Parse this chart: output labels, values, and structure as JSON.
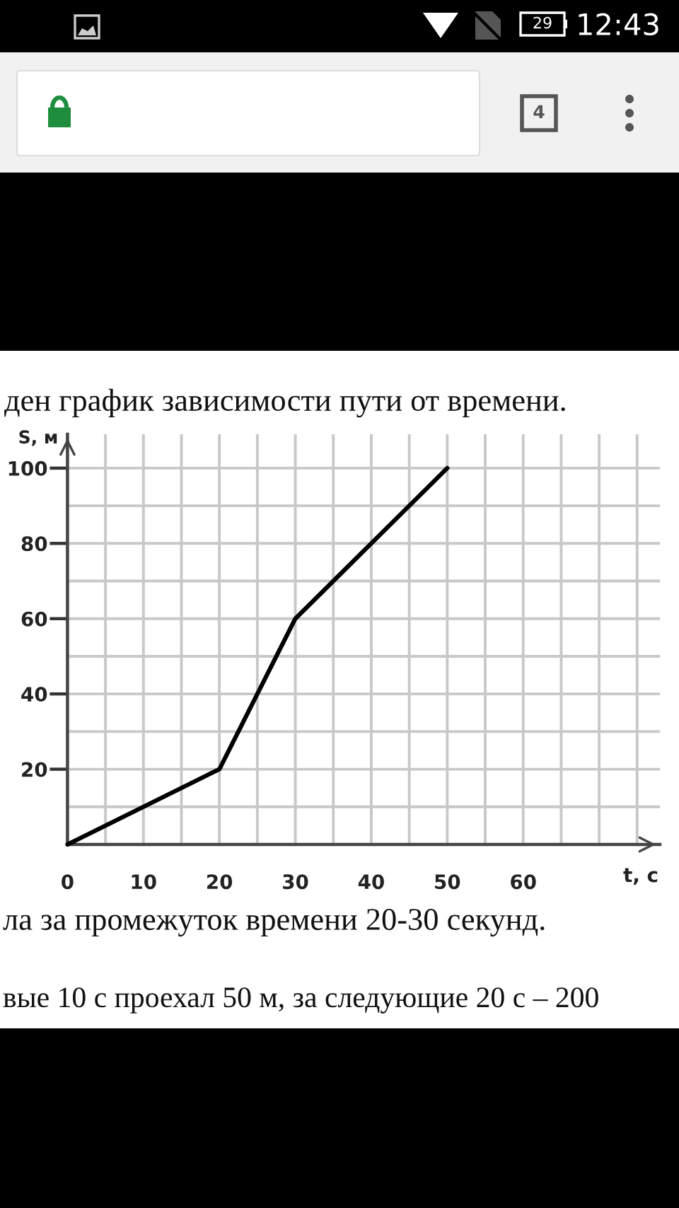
{
  "chart_data": {
    "type": "line",
    "title": "ден график зависимости пути от времени.",
    "xlabel": "t, c",
    "ylabel": "S, м",
    "x": [
      0,
      20,
      30,
      50
    ],
    "values": [
      0,
      20,
      60,
      100
    ],
    "color": "#000000",
    "xlim": [
      0,
      78
    ],
    "ylim": [
      0,
      109
    ],
    "xticks": [
      0,
      {
        "value": 5,
        "label": null
      },
      10,
      {
        "value": 15,
        "label": null
      },
      20,
      {
        "value": 25,
        "label": null
      },
      30,
      {
        "value": 35,
        "label": null
      },
      40,
      {
        "value": 45,
        "label": null
      },
      50,
      {
        "value": 55,
        "label": null
      },
      60,
      {
        "value": 65,
        "label": null
      },
      {
        "value": 70,
        "label": null
      },
      {
        "value": 75,
        "label": null
      }
    ],
    "yticks": [
      {
        "value": 10,
        "label": null
      },
      20,
      {
        "value": 30,
        "label": null
      },
      40,
      {
        "value": 50,
        "label": null
      },
      60,
      {
        "value": 70,
        "label": null
      },
      80,
      {
        "value": 90,
        "label": null
      },
      100
    ],
    "grid": true,
    "line_style": "solid",
    "annotations": [
      "ла за промежуток времени 20-30 секунд.",
      "вые 10 с проехал 50 м, за следующие 20 с – 200",
      "12:43",
      "29",
      "4"
    ]
  }
}
